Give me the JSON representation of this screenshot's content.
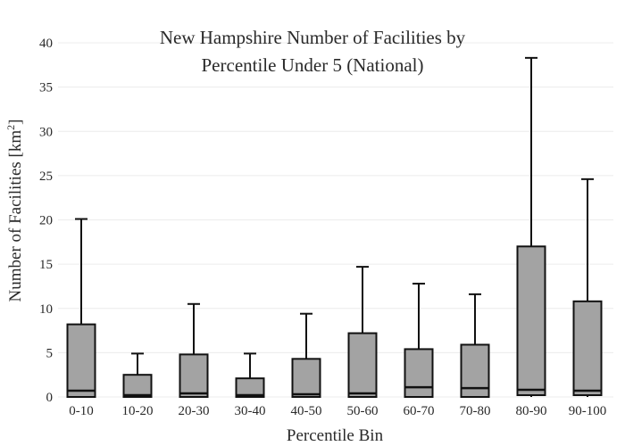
{
  "chart_data": {
    "type": "box",
    "title_line1": "New Hampshire Number of Facilities by",
    "title_line2": "Percentile Under 5 (National)",
    "xlabel": "Percentile Bin",
    "ylabel_main": "Number of Facilities  [km",
    "ylabel_sup": "2",
    "ylabel_end": "]",
    "ylim": [
      0,
      40
    ],
    "yticks": [
      0,
      5,
      10,
      15,
      20,
      25,
      30,
      35,
      40
    ],
    "grid": true,
    "categories": [
      "0-10",
      "10-20",
      "20-30",
      "30-40",
      "40-50",
      "50-60",
      "60-70",
      "70-80",
      "80-90",
      "90-100"
    ],
    "boxes": [
      {
        "min": 0,
        "q1": 0,
        "median": 0.7,
        "q3": 8.2,
        "max": 20.1
      },
      {
        "min": 0,
        "q1": 0,
        "median": 0.2,
        "q3": 2.5,
        "max": 4.9
      },
      {
        "min": 0,
        "q1": 0,
        "median": 0.4,
        "q3": 4.8,
        "max": 10.5
      },
      {
        "min": 0,
        "q1": 0,
        "median": 0.2,
        "q3": 2.1,
        "max": 4.9
      },
      {
        "min": 0,
        "q1": 0,
        "median": 0.3,
        "q3": 4.3,
        "max": 9.4
      },
      {
        "min": 0,
        "q1": 0,
        "median": 0.4,
        "q3": 7.2,
        "max": 14.7
      },
      {
        "min": 0,
        "q1": 0,
        "median": 1.1,
        "q3": 5.4,
        "max": 12.8
      },
      {
        "min": 0,
        "q1": 0,
        "median": 1.0,
        "q3": 5.9,
        "max": 11.6
      },
      {
        "min": 0,
        "q1": 0.2,
        "median": 0.8,
        "q3": 17.0,
        "max": 38.3
      },
      {
        "min": 0,
        "q1": 0.2,
        "median": 0.7,
        "q3": 10.8,
        "max": 24.6
      }
    ],
    "colors": {
      "box_fill": "#a3a3a3",
      "stroke": "#111111",
      "grid": "#ececec"
    }
  }
}
